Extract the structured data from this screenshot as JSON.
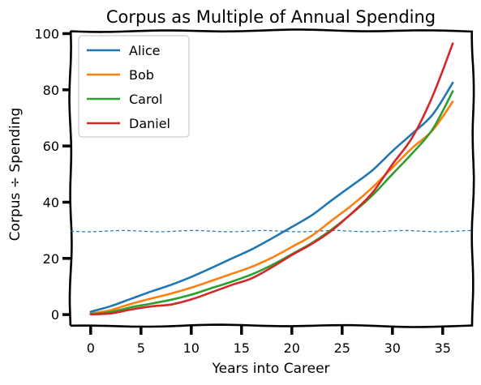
{
  "chart_data": {
    "type": "line",
    "title": "Corpus as Multiple of Annual Spending",
    "xlabel": "Years into Career",
    "ylabel": "Corpus ÷ Spending",
    "xlim": [
      -2,
      38
    ],
    "ylim": [
      -4,
      101
    ],
    "xticks": [
      0,
      5,
      10,
      15,
      20,
      25,
      30,
      35
    ],
    "yticks": [
      0,
      20,
      40,
      60,
      80,
      100
    ],
    "grid": false,
    "legend_position": "top-left",
    "reference_line": {
      "y": 29.7,
      "style": "dashed",
      "color": "#1f77b4"
    },
    "x": [
      0,
      2,
      4,
      6,
      8,
      10,
      12,
      14,
      16,
      18,
      20,
      22,
      24,
      26,
      28,
      30,
      32,
      34,
      36
    ],
    "series": [
      {
        "name": "Alice",
        "color": "#1f77b4",
        "values": [
          1.0,
          3.0,
          5.6,
          8.2,
          10.6,
          13.4,
          16.6,
          19.9,
          23.2,
          27.1,
          31.2,
          35.4,
          40.8,
          46.0,
          51.3,
          58.2,
          64.5,
          71.2,
          82.5
        ]
      },
      {
        "name": "Bob",
        "color": "#ff7f0e",
        "values": [
          0.3,
          1.6,
          3.8,
          5.7,
          7.5,
          9.6,
          12.0,
          14.5,
          17.0,
          20.2,
          24.1,
          28.1,
          33.6,
          39.0,
          45.2,
          52.3,
          59.4,
          65.6,
          75.8
        ]
      },
      {
        "name": "Carol",
        "color": "#2ca02c",
        "values": [
          0.2,
          0.9,
          2.6,
          3.9,
          5.3,
          7.1,
          9.4,
          11.7,
          14.3,
          17.6,
          21.5,
          25.5,
          30.4,
          36.1,
          42.4,
          50.0,
          57.5,
          66.0,
          79.5
        ]
      },
      {
        "name": "Daniel",
        "color": "#d62728",
        "values": [
          0.1,
          0.4,
          1.8,
          2.9,
          3.6,
          5.4,
          7.9,
          10.5,
          12.9,
          16.8,
          21.2,
          25.2,
          30.0,
          36.2,
          43.3,
          53.5,
          63.2,
          77.8,
          96.5
        ]
      }
    ]
  }
}
